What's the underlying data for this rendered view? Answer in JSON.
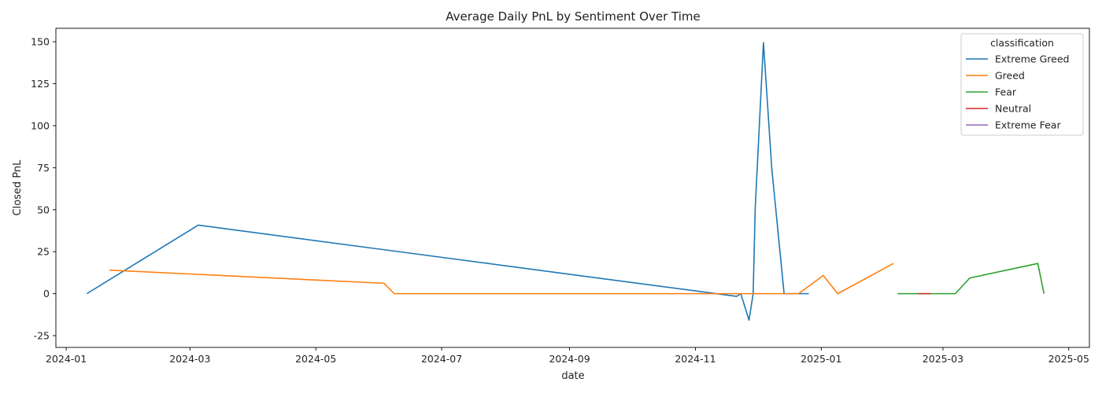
{
  "chart_data": {
    "type": "line",
    "title": "Average Daily PnL by Sentiment Over Time",
    "xlabel": "date",
    "ylabel": "Closed PnL",
    "xlim": [
      "2023-12-27",
      "2025-05-11"
    ],
    "ylim": [
      -32,
      158
    ],
    "x_ticks": [
      "2024-01",
      "2024-03",
      "2024-05",
      "2024-07",
      "2024-09",
      "2024-11",
      "2025-01",
      "2025-03",
      "2025-05"
    ],
    "y_ticks": [
      -25,
      0,
      25,
      50,
      75,
      100,
      125,
      150
    ],
    "grid": false,
    "legend": {
      "title": "classification",
      "position": "top-right"
    },
    "series": [
      {
        "name": "Extreme Greed",
        "color": "#1f77b4",
        "points": [
          [
            "2024-01-11",
            0
          ],
          [
            "2024-03-05",
            40.8
          ],
          [
            "2024-11-21",
            -1.6
          ],
          [
            "2024-11-23",
            0
          ],
          [
            "2024-11-27",
            -15.8
          ],
          [
            "2024-11-29",
            0
          ],
          [
            "2024-11-30",
            51
          ],
          [
            "2024-12-04",
            149.5
          ],
          [
            "2024-12-08",
            75
          ],
          [
            "2024-12-14",
            0
          ],
          [
            "2024-12-26",
            0
          ]
        ]
      },
      {
        "name": "Greed",
        "color": "#ff7f0e",
        "points": [
          [
            "2024-01-22",
            14
          ],
          [
            "2024-06-03",
            6.2
          ],
          [
            "2024-06-08",
            0
          ],
          [
            "2024-12-21",
            0
          ],
          [
            "2025-01-02",
            10.8
          ],
          [
            "2025-01-09",
            0
          ],
          [
            "2025-02-05",
            18
          ]
        ]
      },
      {
        "name": "Fear",
        "color": "#2ca02c",
        "points": [
          [
            "2025-02-07",
            0
          ],
          [
            "2025-03-07",
            0
          ],
          [
            "2025-03-14",
            9.3
          ],
          [
            "2025-04-16",
            18
          ],
          [
            "2025-04-19",
            0
          ]
        ]
      },
      {
        "name": "Neutral",
        "color": "#d62728",
        "points": [
          [
            "2025-02-17",
            0
          ],
          [
            "2025-02-23",
            0
          ]
        ]
      },
      {
        "name": "Extreme Fear",
        "color": "#9467bd",
        "points": []
      }
    ]
  }
}
